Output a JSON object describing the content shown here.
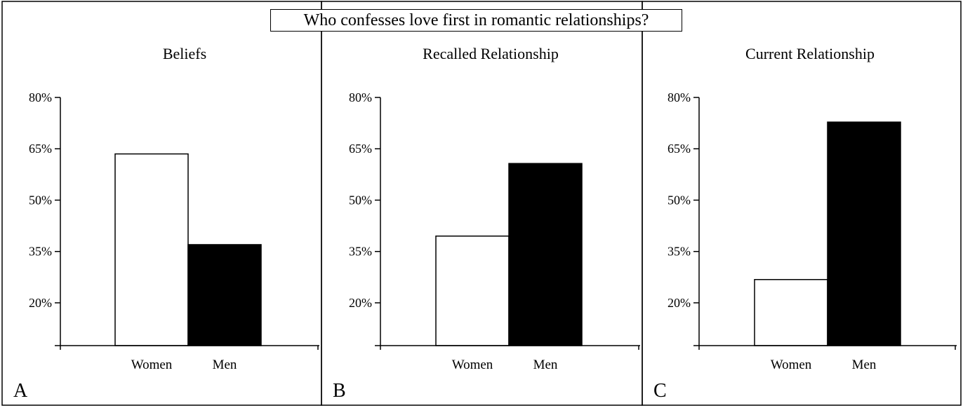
{
  "main_title": "Who confesses love first in romantic relationships?",
  "colors": {
    "women": "#ffffff",
    "men": "#000000",
    "axis": "#000000"
  },
  "chart_data": [
    {
      "type": "bar",
      "panel_letter": "A",
      "title": "Beliefs",
      "categories": [
        "Women",
        "Men"
      ],
      "values": [
        63.5,
        37
      ],
      "yticks": [
        "80%",
        "65%",
        "50%",
        "35%",
        "20%"
      ],
      "ytick_values": [
        80,
        65,
        50,
        35,
        20
      ],
      "ylim": [
        7.5,
        80
      ],
      "grid": false
    },
    {
      "type": "bar",
      "panel_letter": "B",
      "title": "Recalled Relationship",
      "categories": [
        "Women",
        "Men"
      ],
      "values": [
        39.5,
        60.7
      ],
      "yticks": [
        "80%",
        "65%",
        "50%",
        "35%",
        "20%"
      ],
      "ytick_values": [
        80,
        65,
        50,
        35,
        20
      ],
      "ylim": [
        7.5,
        80
      ],
      "grid": false
    },
    {
      "type": "bar",
      "panel_letter": "C",
      "title": "Current Relationship",
      "categories": [
        "Women",
        "Men"
      ],
      "values": [
        26.8,
        72.8
      ],
      "yticks": [
        "80%",
        "65%",
        "50%",
        "35%",
        "20%"
      ],
      "ytick_values": [
        80,
        65,
        50,
        35,
        20
      ],
      "ylim": [
        7.5,
        80
      ],
      "grid": false
    }
  ]
}
